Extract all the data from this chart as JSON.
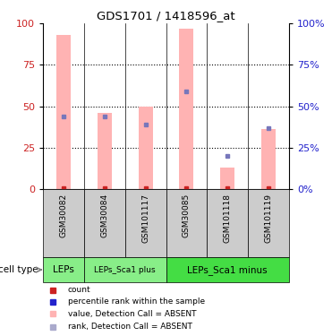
{
  "title": "GDS1701 / 1418596_at",
  "samples": [
    "GSM30082",
    "GSM30084",
    "GSM101117",
    "GSM30085",
    "GSM101118",
    "GSM101119"
  ],
  "bar_pink_values": [
    93,
    46,
    50,
    97,
    13,
    36
  ],
  "bar_pink_color": "#FFB3B3",
  "dot_blue_values": [
    44,
    44,
    39,
    59,
    20,
    37
  ],
  "dot_blue_color": "#7777BB",
  "dot_red_values": [
    0.5,
    0.5,
    0.5,
    0.5,
    0.5,
    0.5
  ],
  "dot_red_color": "#CC2222",
  "ylim": [
    0,
    100
  ],
  "left_yticks": [
    0,
    25,
    50,
    75,
    100
  ],
  "right_yticks": [
    0,
    25,
    50,
    75,
    100
  ],
  "left_ycolor": "#CC2222",
  "right_ycolor": "#2222CC",
  "cell_type_groups": [
    {
      "label": "LEPs",
      "start": 0,
      "end": 1,
      "color": "#88EE88",
      "fontsize": 7.5
    },
    {
      "label": "LEPs_Sca1 plus",
      "start": 1,
      "end": 3,
      "color": "#88EE88",
      "fontsize": 6.5
    },
    {
      "label": "LEPs_Sca1 minus",
      "start": 3,
      "end": 6,
      "color": "#44DD44",
      "fontsize": 7.5
    }
  ],
  "cell_type_label": "cell type",
  "legend_items": [
    {
      "color": "#CC2222",
      "marker": "s",
      "label": "count"
    },
    {
      "color": "#2222CC",
      "marker": "s",
      "label": "percentile rank within the sample"
    },
    {
      "color": "#FFB3B3",
      "marker": "s",
      "label": "value, Detection Call = ABSENT"
    },
    {
      "color": "#AAAACC",
      "marker": "s",
      "label": "rank, Detection Call = ABSENT"
    }
  ],
  "bar_width": 0.35,
  "xtick_bg_color": "#CCCCCC",
  "xtick_fontsize": 6.5
}
